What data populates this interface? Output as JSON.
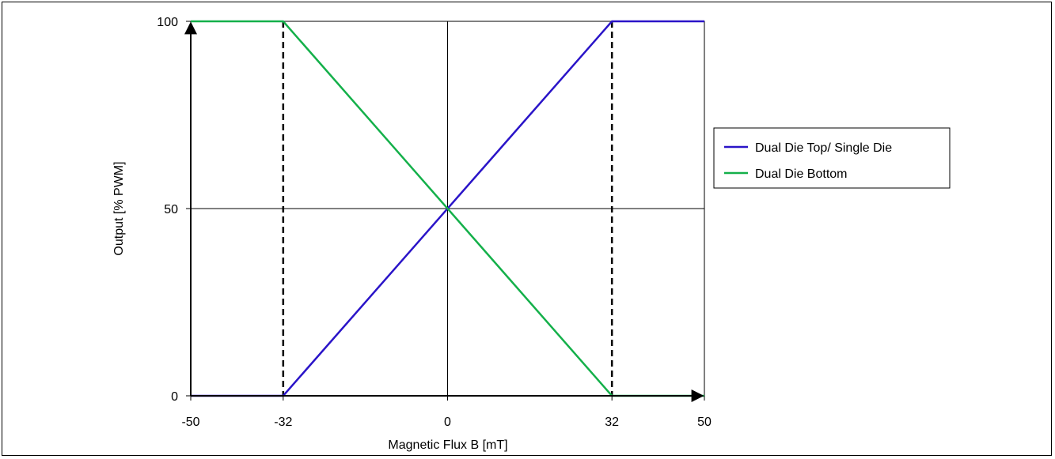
{
  "chart_data": {
    "type": "line",
    "xlabel": "Magnetic Flux B [mT]",
    "ylabel": "Output [% PWM]",
    "xlim": [
      -50,
      50
    ],
    "ylim": [
      0,
      100
    ],
    "xticks": [
      -50,
      -32,
      0,
      32,
      50
    ],
    "yticks": [
      0,
      50,
      100
    ],
    "grid": true,
    "grid_lines": {
      "x": [
        0
      ],
      "y": [
        50
      ]
    },
    "reference_lines": [
      {
        "x": -32,
        "style": "dashed",
        "color": "#000000"
      },
      {
        "x": 32,
        "style": "dashed",
        "color": "#000000"
      }
    ],
    "legend_position": "right",
    "series": [
      {
        "name": "Dual Die Top/ Single Die",
        "color": "#2a14c8",
        "x": [
          -50,
          -32,
          32,
          50
        ],
        "y": [
          0,
          0,
          100,
          100
        ]
      },
      {
        "name": "Dual Die Bottom",
        "color": "#14b04a",
        "x": [
          -50,
          -32,
          32,
          50
        ],
        "y": [
          100,
          100,
          0,
          0
        ]
      }
    ]
  }
}
